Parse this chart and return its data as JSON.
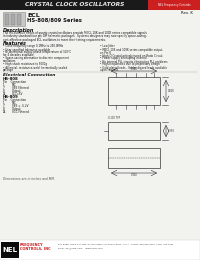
{
  "title": "CRYSTAL CLOCK OSCILLATORS",
  "title_bg": "#1a1a1a",
  "title_color": "#e8e8e8",
  "brand_bg": "#cc2020",
  "brand_text": "NEL Frequency Controls",
  "rev_text": "Rev. K",
  "series_name": "ECL",
  "series_subtitle": "HS-808/809 Series",
  "description_title": "Description",
  "desc_lines": [
    "The HS-808/809 Series of quartz crystal oscillators provide MECL 10K and 100K series compatible signals",
    "in industry standard four pin DIP hermetic packages.  Systems designers may now specify space-saving,",
    "cost-effective packaged ECL oscillators to meet their timing requirements."
  ],
  "features_title": "Features",
  "features_left": [
    "Clock frequency range 0.1MHz to 250.0MHz",
    "User specified tolerance available",
    "Bi-directional output phase temperature of 100°C",
    "  for 4 decades available",
    "Space-saving alternative to discrete component",
    "  oscillators",
    "High shock resistance to 5000g",
    "All metal, resistance-weld, hermetically sealed",
    "  package"
  ],
  "features_right": [
    "Low Jitter",
    "MECL 10K and 100K series compatible output",
    "  on Pin 8",
    "High-Q Crystal actively tuned on Ratio Circuit",
    "Power supply decoupling internal",
    "No internal PLL circuits eliminating PLL problems",
    "High-frequencies due to proprietary design",
    "Gold-plated leads - Solder-dipped leads available",
    "  upon request"
  ],
  "electrical_title": "Electrical Connection",
  "hs808_title": "HS-808",
  "hs808_header": "Pin    Connection",
  "hs808_pins": [
    [
      "1",
      "N/C"
    ],
    [
      "7",
      "VEE Filtered"
    ],
    [
      "8",
      "Output"
    ],
    [
      "14",
      "VCC=5V"
    ]
  ],
  "hs809_title": "HS-809",
  "hs809_header": "Pin    Connection",
  "hs809_pins": [
    [
      "1",
      "N/C"
    ],
    [
      "7",
      "VEE = -5.2V"
    ],
    [
      "8",
      "Output"
    ],
    [
      "14",
      "VCC Filtered"
    ]
  ],
  "dimensions_note": "Dimensions are in inches and MM.",
  "nel_logo_bg": "#0a0a0a",
  "nel_logo_text": "NEL",
  "freq_text_1": "FREQUENCY",
  "freq_text_2": "CONTROLS, INC",
  "footer_addr_1": "107 Bober Road, P.O. Box 47, Burlington, WI 53105-0047, U.S.A.  Phone: 800/454-5461  (262) 763-3591",
  "footer_addr_2": "Email: nel@nelfc.com    www.nelfc.com",
  "bg_color": "#f2f2ee",
  "white": "#ffffff",
  "black": "#111111",
  "gray": "#888888",
  "red": "#cc2020",
  "dark_gray": "#444444"
}
